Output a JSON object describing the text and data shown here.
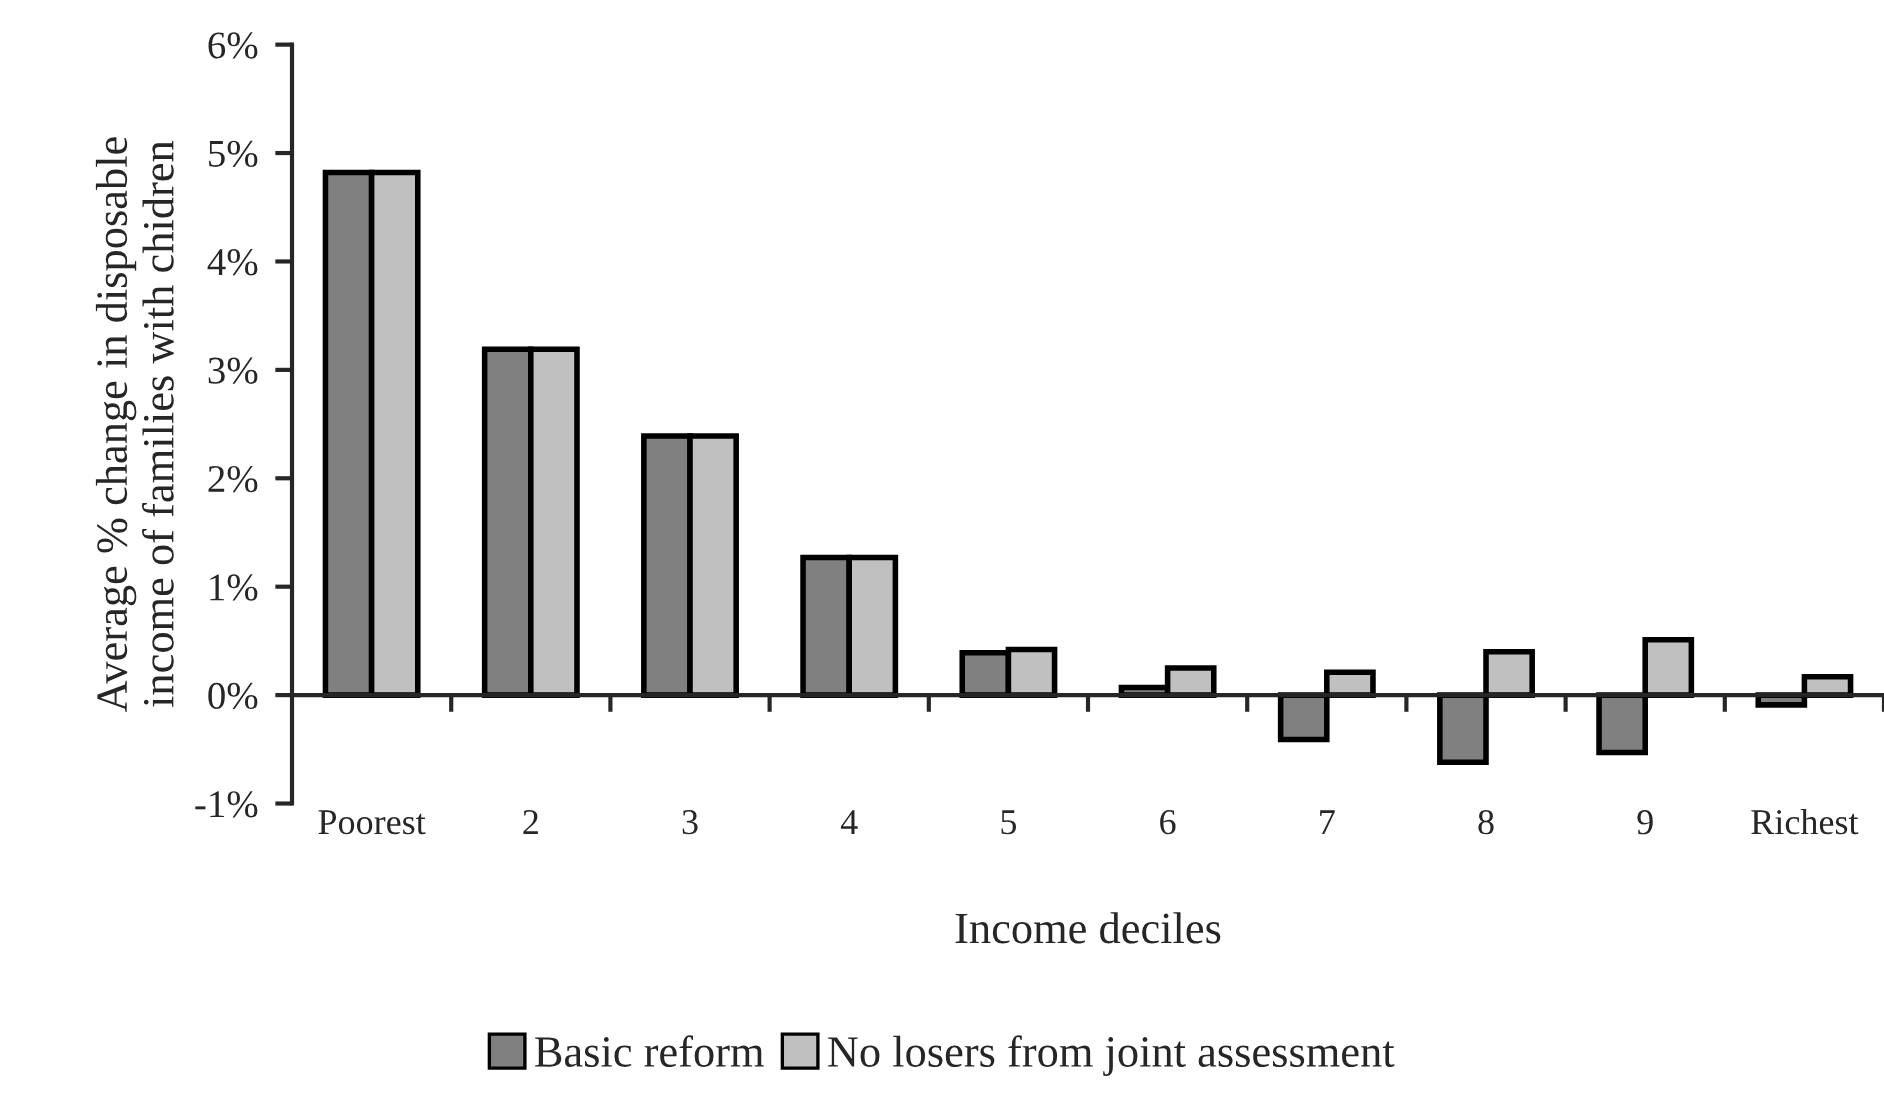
{
  "chart_data": {
    "type": "bar",
    "xlabel": "Income deciles",
    "ylabel": "Average % change in disposable\nincome of families with chidren",
    "categories": [
      "Poorest",
      "2",
      "3",
      "4",
      "5",
      "6",
      "7",
      "8",
      "9",
      "Richest"
    ],
    "series": [
      {
        "name": "Basic reform",
        "color": "#808080",
        "values": [
          4.82,
          3.19,
          2.39,
          1.27,
          0.39,
          0.07,
          -0.41,
          -0.62,
          -0.53,
          -0.09
        ]
      },
      {
        "name": "No losers from joint assessment",
        "color": "#c0c0c0",
        "values": [
          4.82,
          3.19,
          2.39,
          1.27,
          0.42,
          0.25,
          0.21,
          0.4,
          0.51,
          0.17
        ]
      }
    ],
    "ylim": [
      -1,
      6
    ],
    "yticks": [
      {
        "value": -1,
        "label": "-1%"
      },
      {
        "value": 0,
        "label": "0%"
      },
      {
        "value": 1,
        "label": "1%"
      },
      {
        "value": 2,
        "label": "2%"
      },
      {
        "value": 3,
        "label": "3%"
      },
      {
        "value": 4,
        "label": "4%"
      },
      {
        "value": 5,
        "label": "5%"
      },
      {
        "value": 6,
        "label": "6%"
      }
    ],
    "legend": "bottom"
  }
}
